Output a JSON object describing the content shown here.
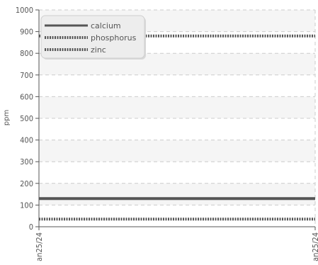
{
  "chart_data": {
    "type": "line",
    "ylabel": "ppm",
    "ylim": [
      0,
      1000
    ],
    "y_ticks": [
      "0",
      "100",
      "200",
      "300",
      "400",
      "500",
      "600",
      "700",
      "800",
      "900",
      "1000"
    ],
    "x_tick_labels": [
      "an25/24",
      "an25/24"
    ],
    "grid": true,
    "legend_position": "top-left",
    "series": [
      {
        "name": "calcium",
        "values": [
          130,
          130
        ],
        "color": "#555555",
        "style": "solid"
      },
      {
        "name": "phosphorus",
        "values": [
          880,
          880
        ],
        "color": "#555555",
        "style": "dotted"
      },
      {
        "name": "zinc",
        "values": [
          35,
          35
        ],
        "color": "#555555",
        "style": "dotted"
      }
    ]
  }
}
